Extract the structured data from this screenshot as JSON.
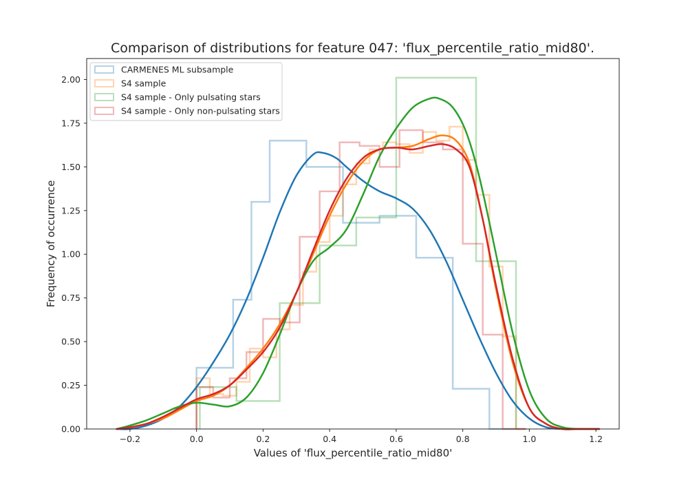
{
  "chart_data": {
    "type": "histogram-kde",
    "title": "Comparison of distributions for feature 047: 'flux_percentile_ratio_mid80'.",
    "xlabel": "Values of 'flux_percentile_ratio_mid80'",
    "ylabel": "Frequency of occurrence",
    "xlim": [
      -0.33,
      1.27
    ],
    "ylim": [
      0,
      2.12
    ],
    "xticks": [
      -0.2,
      0.0,
      0.2,
      0.4,
      0.6,
      0.8,
      1.0,
      1.2
    ],
    "xtick_labels": [
      "−0.2",
      "0.0",
      "0.2",
      "0.4",
      "0.6",
      "0.8",
      "1.0",
      "1.2"
    ],
    "yticks": [
      0.0,
      0.25,
      0.5,
      0.75,
      1.0,
      1.25,
      1.5,
      1.75,
      2.0
    ],
    "ytick_labels": [
      "0.00",
      "0.25",
      "0.50",
      "0.75",
      "1.00",
      "1.25",
      "1.50",
      "1.75",
      "2.00"
    ],
    "grid": false,
    "legend_position": "top-left",
    "series": [
      {
        "name": "CARMENES ML subsample",
        "color": "#1f77b4",
        "hist": {
          "edges": [
            0.0,
            0.11,
            0.165,
            0.22,
            0.33,
            0.44,
            0.55,
            0.66,
            0.77,
            0.88,
            0.99
          ],
          "values": [
            0.35,
            0.74,
            1.3,
            1.65,
            1.5,
            1.18,
            1.22,
            0.98,
            0.23,
            0.0
          ]
        },
        "kde": {
          "x": [
            -0.24,
            -0.2,
            -0.15,
            -0.1,
            -0.05,
            0.0,
            0.05,
            0.1,
            0.15,
            0.2,
            0.25,
            0.3,
            0.35,
            0.38,
            0.42,
            0.45,
            0.5,
            0.55,
            0.6,
            0.65,
            0.7,
            0.75,
            0.8,
            0.85,
            0.9,
            0.95,
            1.0,
            1.05,
            1.1,
            1.15,
            1.21
          ],
          "y": [
            0.0,
            0.0,
            0.02,
            0.06,
            0.13,
            0.24,
            0.38,
            0.54,
            0.74,
            0.98,
            1.24,
            1.45,
            1.57,
            1.58,
            1.55,
            1.5,
            1.42,
            1.36,
            1.32,
            1.26,
            1.14,
            0.96,
            0.74,
            0.52,
            0.32,
            0.16,
            0.06,
            0.01,
            0.0,
            0.0,
            0.0
          ]
        }
      },
      {
        "name": "S4 sample",
        "color": "#ff7f0e",
        "hist": {
          "edges": [
            0.0,
            0.04,
            0.08,
            0.12,
            0.16,
            0.2,
            0.24,
            0.28,
            0.32,
            0.36,
            0.4,
            0.44,
            0.48,
            0.52,
            0.56,
            0.6,
            0.64,
            0.68,
            0.72,
            0.76,
            0.8,
            0.84,
            0.88,
            0.92,
            0.96,
            0.99
          ],
          "values": [
            0.29,
            0.2,
            0.19,
            0.27,
            0.46,
            0.41,
            0.57,
            0.71,
            0.9,
            1.07,
            1.22,
            1.4,
            1.52,
            1.6,
            1.64,
            1.63,
            1.58,
            1.7,
            1.65,
            1.73,
            1.54,
            1.34,
            0.93,
            0.53,
            0.0
          ]
        },
        "kde": {
          "x": [
            -0.24,
            -0.2,
            -0.15,
            -0.1,
            -0.05,
            0.0,
            0.05,
            0.1,
            0.15,
            0.2,
            0.25,
            0.3,
            0.35,
            0.4,
            0.45,
            0.5,
            0.55,
            0.6,
            0.65,
            0.7,
            0.74,
            0.78,
            0.82,
            0.86,
            0.9,
            0.95,
            1.0,
            1.05,
            1.1,
            1.15,
            1.21
          ],
          "y": [
            0.0,
            0.01,
            0.03,
            0.06,
            0.11,
            0.16,
            0.19,
            0.25,
            0.35,
            0.46,
            0.6,
            0.78,
            1.0,
            1.22,
            1.4,
            1.53,
            1.6,
            1.61,
            1.62,
            1.66,
            1.68,
            1.65,
            1.52,
            1.2,
            0.8,
            0.38,
            0.12,
            0.03,
            0.0,
            0.0,
            0.0
          ]
        }
      },
      {
        "name": "S4 sample - Only pulsating stars",
        "color": "#2ca02c",
        "hist": {
          "edges": [
            0.01,
            0.12,
            0.25,
            0.37,
            0.48,
            0.6,
            0.84,
            0.96
          ],
          "values": [
            0.24,
            0.16,
            0.72,
            1.05,
            1.21,
            2.01,
            0.96,
            0.0
          ]
        },
        "kde": {
          "x": [
            -0.24,
            -0.2,
            -0.15,
            -0.1,
            -0.05,
            0.0,
            0.05,
            0.1,
            0.15,
            0.2,
            0.25,
            0.3,
            0.35,
            0.4,
            0.45,
            0.5,
            0.55,
            0.6,
            0.65,
            0.7,
            0.73,
            0.77,
            0.81,
            0.85,
            0.9,
            0.95,
            1.0,
            1.05,
            1.1,
            1.15,
            1.21
          ],
          "y": [
            0.0,
            0.02,
            0.05,
            0.09,
            0.13,
            0.15,
            0.14,
            0.13,
            0.18,
            0.32,
            0.54,
            0.78,
            0.96,
            1.04,
            1.14,
            1.34,
            1.56,
            1.72,
            1.84,
            1.89,
            1.89,
            1.84,
            1.7,
            1.44,
            1.0,
            0.55,
            0.22,
            0.06,
            0.01,
            0.0,
            0.0
          ]
        }
      },
      {
        "name": "S4 sample - Only non-pulsating stars",
        "color": "#d62728",
        "hist": {
          "edges": [
            0.0,
            0.05,
            0.1,
            0.15,
            0.2,
            0.25,
            0.31,
            0.37,
            0.43,
            0.49,
            0.55,
            0.61,
            0.68,
            0.74,
            0.8,
            0.86,
            0.92,
            0.99
          ],
          "values": [
            0.24,
            0.18,
            0.29,
            0.44,
            0.63,
            0.61,
            1.1,
            1.36,
            1.64,
            1.62,
            1.5,
            1.71,
            1.64,
            1.6,
            1.06,
            0.54,
            0.0
          ]
        },
        "kde": {
          "x": [
            -0.24,
            -0.2,
            -0.15,
            -0.1,
            -0.05,
            0.0,
            0.05,
            0.1,
            0.15,
            0.2,
            0.25,
            0.3,
            0.35,
            0.4,
            0.45,
            0.5,
            0.55,
            0.6,
            0.65,
            0.7,
            0.74,
            0.78,
            0.82,
            0.86,
            0.9,
            0.95,
            1.0,
            1.05,
            1.1,
            1.15,
            1.21
          ],
          "y": [
            0.0,
            0.01,
            0.03,
            0.07,
            0.12,
            0.17,
            0.2,
            0.25,
            0.34,
            0.44,
            0.58,
            0.78,
            1.02,
            1.25,
            1.43,
            1.55,
            1.6,
            1.61,
            1.6,
            1.62,
            1.63,
            1.6,
            1.5,
            1.2,
            0.82,
            0.4,
            0.12,
            0.03,
            0.0,
            0.0,
            0.0
          ]
        }
      }
    ]
  }
}
